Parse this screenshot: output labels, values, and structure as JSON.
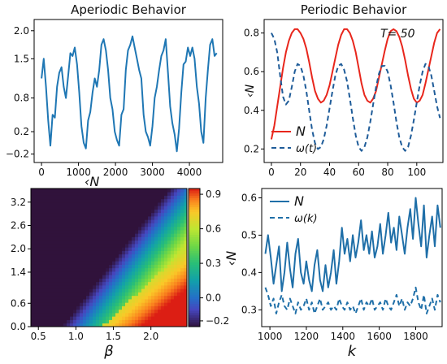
{
  "chart_data": [
    {
      "type": "line",
      "title": "Aperiodic Behavior",
      "xlabel": "",
      "ylabel": "",
      "xlim": [
        -200,
        4900
      ],
      "ylim": [
        -0.35,
        2.2
      ],
      "xticks": [
        0,
        1000,
        2000,
        3000,
        4000
      ],
      "xtick_labels": [
        "0",
        "1000",
        "2000",
        "3000",
        "4000"
      ],
      "yticks": [
        -0.2,
        0.2,
        0.8,
        1.5,
        2.0
      ],
      "ytick_labels": [
        "−0.2",
        "0.2",
        "0.8",
        "1.5",
        "2.0"
      ],
      "series": [
        {
          "color": "#1f77b4",
          "x": [
            0,
            60,
            120,
            180,
            240,
            300,
            360,
            420,
            480,
            540,
            600,
            660,
            720,
            780,
            840,
            900,
            960,
            1020,
            1080,
            1140,
            1200,
            1260,
            1320,
            1380,
            1440,
            1500,
            1560,
            1620,
            1680,
            1740,
            1800,
            1860,
            1920,
            1980,
            2040,
            2100,
            2160,
            2220,
            2280,
            2340,
            2400,
            2460,
            2520,
            2580,
            2640,
            2700,
            2760,
            2820,
            2880,
            2940,
            3000,
            3060,
            3120,
            3180,
            3240,
            3300,
            3360,
            3420,
            3480,
            3540,
            3600,
            3660,
            3720,
            3780,
            3840,
            3900,
            3960,
            4020,
            4080,
            4140,
            4200,
            4260,
            4320,
            4380,
            4440,
            4500,
            4560,
            4620,
            4680,
            4740
          ],
          "y": [
            1.15,
            1.5,
            1.0,
            0.4,
            -0.05,
            0.5,
            0.45,
            1.0,
            1.25,
            1.35,
            1.0,
            0.8,
            1.2,
            1.6,
            1.55,
            1.7,
            1.4,
            0.9,
            0.3,
            0.0,
            -0.1,
            0.4,
            0.55,
            0.9,
            1.15,
            1.0,
            1.3,
            1.75,
            1.85,
            1.65,
            1.3,
            0.8,
            0.6,
            0.2,
            0.05,
            -0.05,
            0.5,
            0.6,
            1.3,
            1.65,
            1.75,
            1.9,
            1.7,
            1.5,
            1.3,
            1.15,
            0.5,
            0.2,
            0.1,
            -0.05,
            0.3,
            0.8,
            1.0,
            1.3,
            1.55,
            1.65,
            1.85,
            1.25,
            0.65,
            0.35,
            0.15,
            -0.15,
            0.25,
            0.9,
            1.4,
            1.45,
            1.7,
            1.55,
            1.7,
            1.5,
            1.0,
            0.7,
            0.2,
            0.0,
            0.8,
            1.3,
            1.75,
            1.85,
            1.55,
            1.6
          ]
        }
      ]
    },
    {
      "type": "line",
      "title": "Periodic Behavior",
      "xlabel": "",
      "ylabel": "‹N",
      "annotation": "T= 50",
      "xlim": [
        -5,
        118
      ],
      "ylim": [
        0.13,
        0.87
      ],
      "xticks": [
        0,
        20,
        40,
        60,
        80,
        100
      ],
      "xtick_labels": [
        "0",
        "20",
        "40",
        "60",
        "80",
        "100"
      ],
      "yticks": [
        0.2,
        0.4,
        0.6,
        0.8
      ],
      "ytick_labels": [
        "0.2",
        "0.4",
        "0.6",
        "0.8"
      ],
      "legend_position": "bottom-left",
      "series": [
        {
          "name": "N",
          "color": "#e8261c",
          "dash": "solid",
          "x": [
            0,
            2,
            4,
            6,
            8,
            10,
            12,
            14,
            16,
            18,
            20,
            22,
            24,
            26,
            28,
            30,
            32,
            34,
            36,
            38,
            40,
            42,
            44,
            46,
            48,
            50,
            52,
            54,
            56,
            58,
            60,
            62,
            64,
            66,
            68,
            70,
            72,
            74,
            76,
            78,
            80,
            82,
            84,
            86,
            88,
            90,
            92,
            94,
            96,
            98,
            100,
            102,
            104,
            106,
            108,
            110,
            112,
            114,
            116
          ],
          "y": [
            0.25,
            0.32,
            0.42,
            0.52,
            0.62,
            0.7,
            0.76,
            0.8,
            0.82,
            0.82,
            0.8,
            0.77,
            0.72,
            0.65,
            0.57,
            0.5,
            0.46,
            0.44,
            0.45,
            0.48,
            0.53,
            0.6,
            0.67,
            0.74,
            0.79,
            0.82,
            0.82,
            0.8,
            0.76,
            0.7,
            0.62,
            0.54,
            0.48,
            0.45,
            0.44,
            0.46,
            0.5,
            0.57,
            0.64,
            0.71,
            0.77,
            0.81,
            0.82,
            0.81,
            0.78,
            0.73,
            0.66,
            0.58,
            0.51,
            0.46,
            0.44,
            0.45,
            0.48,
            0.54,
            0.61,
            0.68,
            0.75,
            0.8,
            0.82
          ]
        },
        {
          "name": "ω(t)",
          "color": "#1f5c99",
          "dash": "dashed",
          "x": [
            0,
            2,
            4,
            6,
            8,
            10,
            12,
            14,
            16,
            18,
            20,
            22,
            24,
            26,
            28,
            30,
            32,
            34,
            36,
            38,
            40,
            42,
            44,
            46,
            48,
            50,
            52,
            54,
            56,
            58,
            60,
            62,
            64,
            66,
            68,
            70,
            72,
            74,
            76,
            78,
            80,
            82,
            84,
            86,
            88,
            90,
            92,
            94,
            96,
            98,
            100,
            102,
            104,
            106,
            108,
            110,
            112,
            114,
            116
          ],
          "y": [
            0.8,
            0.77,
            0.7,
            0.58,
            0.47,
            0.43,
            0.45,
            0.52,
            0.6,
            0.64,
            0.63,
            0.58,
            0.5,
            0.4,
            0.3,
            0.23,
            0.2,
            0.21,
            0.25,
            0.32,
            0.41,
            0.5,
            0.58,
            0.63,
            0.64,
            0.61,
            0.55,
            0.46,
            0.36,
            0.27,
            0.21,
            0.19,
            0.21,
            0.26,
            0.34,
            0.43,
            0.52,
            0.59,
            0.63,
            0.63,
            0.6,
            0.53,
            0.44,
            0.34,
            0.26,
            0.21,
            0.19,
            0.21,
            0.27,
            0.35,
            0.44,
            0.53,
            0.6,
            0.64,
            0.63,
            0.58,
            0.5,
            0.42,
            0.36
          ]
        }
      ]
    },
    {
      "type": "heatmap",
      "xlabel": "β",
      "ylabel": "",
      "top_text": "‹N",
      "xlim": [
        0.4,
        2.48
      ],
      "ylim": [
        0.0,
        3.55
      ],
      "xticks": [
        0.5,
        1.0,
        1.5,
        2.0
      ],
      "xtick_labels": [
        "0.5",
        "1.0",
        "1.5",
        "2.0"
      ],
      "yticks": [
        0.0,
        0.6,
        1.4,
        2.0,
        2.6,
        3.2
      ],
      "ytick_labels": [
        "0.0",
        "0.6",
        "1.4",
        "2.0",
        "2.6",
        "3.2"
      ],
      "colorbar": {
        "colormap": "turbo-like",
        "vmin": -0.25,
        "vmax": 0.95,
        "ticks": [
          -0.2,
          0.0,
          0.3,
          0.6,
          0.9
        ],
        "tick_labels": [
          "−0.2",
          "0.0",
          "0.3",
          "0.6",
          "0.9"
        ]
      }
    },
    {
      "type": "line",
      "xlabel": "k",
      "ylabel": "‹N",
      "xlim": [
        955,
        1945
      ],
      "ylim": [
        0.255,
        0.625
      ],
      "xticks": [
        1000,
        1200,
        1400,
        1600,
        1800
      ],
      "xtick_labels": [
        "1000",
        "1200",
        "1400",
        "1600",
        "1800"
      ],
      "yticks": [
        0.3,
        0.4,
        0.5,
        0.6
      ],
      "ytick_labels": [
        "0.3",
        "0.4",
        "0.5",
        "0.6"
      ],
      "legend_position": "top-left",
      "series": [
        {
          "name": "N",
          "color": "#1f6fa8",
          "dash": "solid",
          "x": [
            975,
            990,
            1005,
            1020,
            1035,
            1050,
            1065,
            1080,
            1095,
            1110,
            1125,
            1140,
            1155,
            1170,
            1185,
            1200,
            1215,
            1230,
            1245,
            1260,
            1275,
            1290,
            1305,
            1320,
            1335,
            1350,
            1365,
            1380,
            1395,
            1410,
            1425,
            1440,
            1455,
            1470,
            1485,
            1500,
            1515,
            1530,
            1545,
            1560,
            1575,
            1590,
            1605,
            1620,
            1635,
            1650,
            1665,
            1680,
            1695,
            1710,
            1725,
            1740,
            1755,
            1770,
            1785,
            1800,
            1815,
            1830,
            1845,
            1860,
            1875,
            1890,
            1905,
            1920,
            1935
          ],
          "y": [
            0.45,
            0.5,
            0.44,
            0.37,
            0.42,
            0.47,
            0.35,
            0.4,
            0.48,
            0.41,
            0.36,
            0.45,
            0.49,
            0.4,
            0.37,
            0.43,
            0.38,
            0.35,
            0.42,
            0.46,
            0.38,
            0.35,
            0.42,
            0.36,
            0.4,
            0.46,
            0.37,
            0.43,
            0.52,
            0.45,
            0.49,
            0.43,
            0.5,
            0.44,
            0.48,
            0.54,
            0.46,
            0.5,
            0.45,
            0.51,
            0.44,
            0.47,
            0.53,
            0.45,
            0.5,
            0.56,
            0.48,
            0.52,
            0.46,
            0.55,
            0.5,
            0.45,
            0.52,
            0.57,
            0.49,
            0.6,
            0.53,
            0.47,
            0.58,
            0.44,
            0.5,
            0.55,
            0.47,
            0.58,
            0.52
          ]
        },
        {
          "name": "ω(k)",
          "color": "#1f6fa8",
          "dash": "dashed",
          "x": [
            975,
            990,
            1005,
            1020,
            1035,
            1050,
            1065,
            1080,
            1095,
            1110,
            1125,
            1140,
            1155,
            1170,
            1185,
            1200,
            1215,
            1230,
            1245,
            1260,
            1275,
            1290,
            1305,
            1320,
            1335,
            1350,
            1365,
            1380,
            1395,
            1410,
            1425,
            1440,
            1455,
            1470,
            1485,
            1500,
            1515,
            1530,
            1545,
            1560,
            1575,
            1590,
            1605,
            1620,
            1635,
            1650,
            1665,
            1680,
            1695,
            1710,
            1725,
            1740,
            1755,
            1770,
            1785,
            1800,
            1815,
            1830,
            1845,
            1860,
            1875,
            1890,
            1905,
            1920,
            1935
          ],
          "y": [
            0.36,
            0.34,
            0.31,
            0.33,
            0.29,
            0.32,
            0.34,
            0.31,
            0.3,
            0.33,
            0.31,
            0.29,
            0.32,
            0.3,
            0.31,
            0.33,
            0.3,
            0.32,
            0.29,
            0.31,
            0.33,
            0.3,
            0.31,
            0.32,
            0.3,
            0.31,
            0.3,
            0.33,
            0.31,
            0.3,
            0.32,
            0.3,
            0.31,
            0.29,
            0.31,
            0.33,
            0.3,
            0.32,
            0.31,
            0.33,
            0.3,
            0.31,
            0.32,
            0.3,
            0.33,
            0.31,
            0.3,
            0.32,
            0.34,
            0.31,
            0.33,
            0.3,
            0.32,
            0.31,
            0.33,
            0.36,
            0.32,
            0.3,
            0.34,
            0.29,
            0.31,
            0.33,
            0.3,
            0.34,
            0.32
          ]
        }
      ]
    }
  ]
}
